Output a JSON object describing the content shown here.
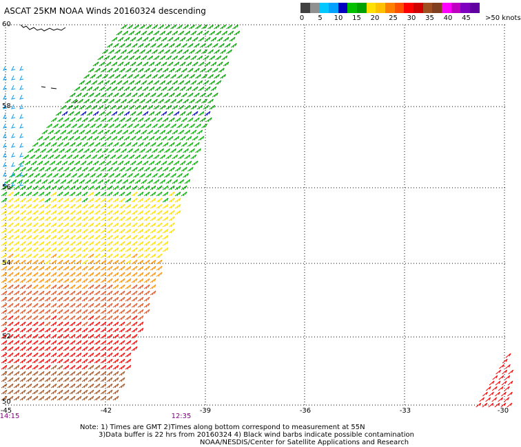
{
  "title": "ASCAT 25KM NOAA Winds 20160324 descending",
  "legend": {
    "labels": [
      "0",
      "5",
      "10",
      "15",
      "20",
      "25",
      "30",
      "35",
      "40",
      "45",
      ">50 knots"
    ],
    "colors": [
      "#404040",
      "#909090",
      "#00c8ff",
      "#00a0ff",
      "#0000c0",
      "#00c000",
      "#00a000",
      "#ffe000",
      "#ffc000",
      "#ff8000",
      "#ff5000",
      "#ff0000",
      "#d00000",
      "#a05020",
      "#804020",
      "#ff00ff",
      "#c000c0",
      "#8000c0",
      "#6000a0"
    ]
  },
  "lat_labels": [
    "60",
    "58",
    "56",
    "54",
    "52",
    "50"
  ],
  "lon_labels": [
    "-45",
    "-42",
    "-39",
    "-36",
    "-33",
    "-30"
  ],
  "time_labels": [
    "14:15",
    "12:35"
  ],
  "notes": {
    "line1": "Note: 1) Times are GMT 2)Times along bottom correspond to measurement at 55N",
    "line2": "3)Data buffer is 22 hrs from 20160324 4) Black wind barbs indicate possible contamination",
    "line3": "NOAA/NESDIS/Center for Satellite Applications and Research"
  }
}
